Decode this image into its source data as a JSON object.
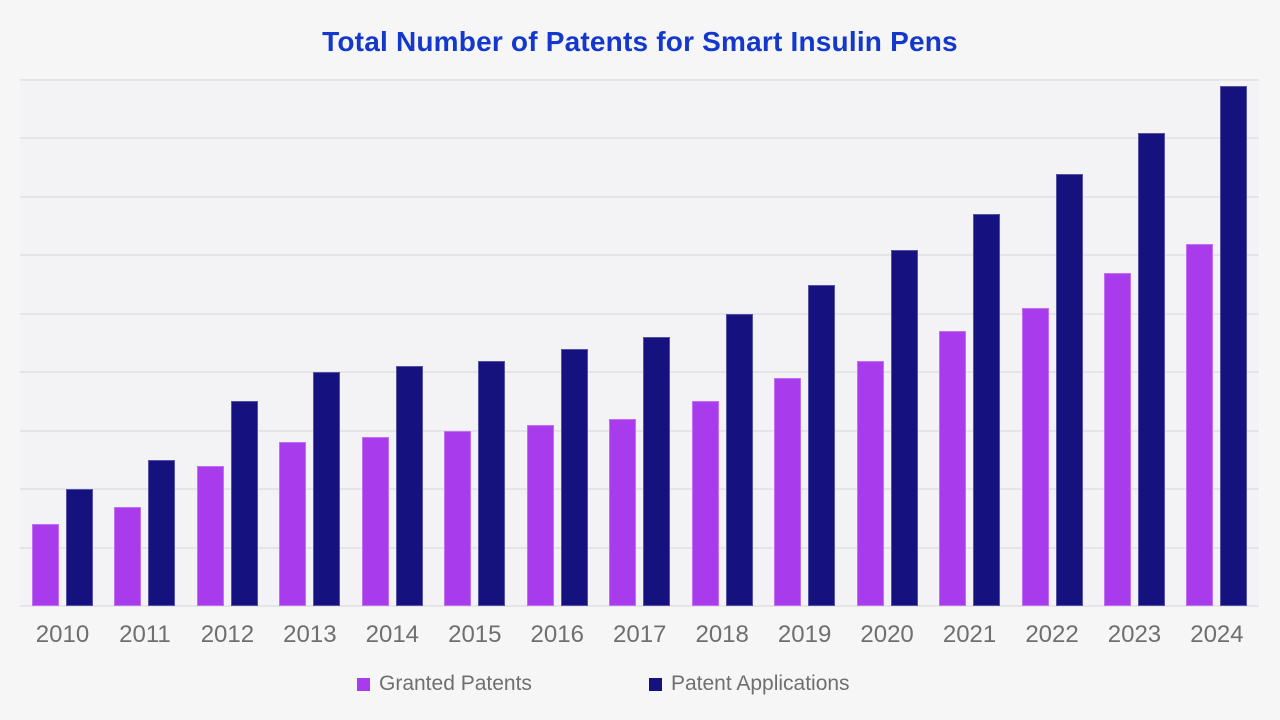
{
  "chart_data": {
    "type": "bar",
    "title": "Total Number of Patents for Smart Insulin Pens",
    "title_color": "#1438cc",
    "categories": [
      "2010",
      "2011",
      "2012",
      "2013",
      "2014",
      "2015",
      "2016",
      "2017",
      "2018",
      "2019",
      "2020",
      "2021",
      "2022",
      "2023",
      "2024"
    ],
    "series": [
      {
        "name": "Granted Patents",
        "color": "#a83beb",
        "values": [
          14,
          17,
          24,
          28,
          29,
          30,
          31,
          32,
          35,
          39,
          42,
          47,
          51,
          57,
          62
        ]
      },
      {
        "name": "Patent Applications",
        "color": "#15117f",
        "values": [
          20,
          25,
          35,
          40,
          41,
          42,
          44,
          46,
          50,
          55,
          61,
          67,
          74,
          81,
          89
        ]
      }
    ],
    "xlabel": "",
    "ylabel": "",
    "ylim": [
      0,
      90
    ],
    "grid_interval": 10,
    "grid": true,
    "y_tick_labels_visible": false,
    "legend_position": "bottom",
    "text_color": "#6f6f6f",
    "plot_background": "#f3f3f5",
    "page_background": "#f6f6f7"
  }
}
